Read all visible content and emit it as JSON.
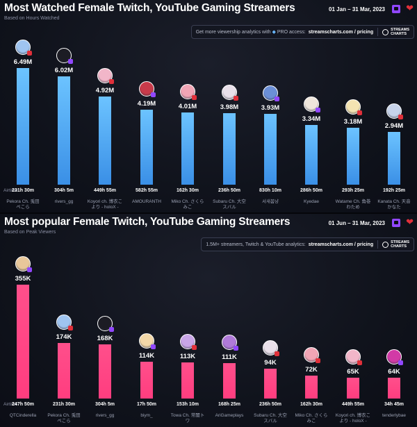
{
  "chart_data": [
    {
      "type": "bar",
      "title": "Most Watched Female Twitch, YouTube Gaming Streamers",
      "subtitle": "Based on Hours Watched",
      "date_range": "01 Jan – 31 Mar, 2023",
      "promo": {
        "text": "Get more viewership analytics with",
        "badge": "PRO access:",
        "link": "streamscharts.com / pricing"
      },
      "categories": [
        "Pekora Ch. 兎田ぺこら",
        "rivers_gg",
        "Koyori ch. 博衣こより - holoX -",
        "AMOURANTH",
        "Miko Ch. さくらみこ",
        "Subaru Ch. 大空スバル",
        "서새봄냥",
        "Kyedae",
        "Watame Ch. 角巻わため",
        "Kanata Ch. 天音かなた"
      ],
      "value_labels": [
        "6.49M",
        "6.02M",
        "4.92M",
        "4.19M",
        "4.01M",
        "3.98M",
        "3.93M",
        "3.34M",
        "3.18M",
        "2.94M"
      ],
      "values": [
        6.49,
        6.02,
        4.92,
        4.19,
        4.01,
        3.98,
        3.93,
        3.34,
        3.18,
        2.94
      ],
      "airtime_label": "Airtime:",
      "airtime": [
        "231h 30m",
        "304h 5m",
        "449h 55m",
        "582h 55m",
        "162h 30m",
        "236h 50m",
        "830h 10m",
        "286h 50m",
        "293h 25m",
        "192h 25m"
      ],
      "avatar_colors": [
        "#9fc4f0",
        "#1c1c24",
        "#f2b6c9",
        "#c83a4a",
        "#f1a5b5",
        "#e9e0ea",
        "#6b8fd6",
        "#efe6dc",
        "#f4e3b2",
        "#c7d3ea"
      ],
      "badge_colors": [
        "#e0303a",
        "#9147ff",
        "#e0303a",
        "#9147ff",
        "#e0303a",
        "#e0303a",
        "#9147ff",
        "#9147ff",
        "#e0303a",
        "#e0303a"
      ],
      "color": "#4aa3f5"
    },
    {
      "type": "bar",
      "title": "Most popular Female Twitch, YouTube Gaming Streamers",
      "subtitle": "Based on Peak Viewers",
      "date_range": "01 Jun – 31 Mar, 2023",
      "promo": {
        "text": "1.5M+ streamers, Twitch & YouTube analytics:",
        "link": "streamscharts.com / pricing"
      },
      "categories": [
        "QTCinderella",
        "Pekora Ch. 兎田ぺこら",
        "rivers_gg",
        "biym_",
        "Towa Ch. 常闇トワ",
        "AriGameplays",
        "Subaru Ch. 大空スバル",
        "Miko Ch. さくらみこ",
        "Koyori ch. 博衣こより - holoX -",
        "tenderlybae"
      ],
      "value_labels": [
        "355K",
        "174K",
        "168K",
        "114K",
        "113K",
        "111K",
        "94K",
        "72K",
        "65K",
        "64K"
      ],
      "values": [
        355,
        174,
        168,
        114,
        113,
        111,
        94,
        72,
        65,
        64
      ],
      "airtime_label": "Airtime:",
      "airtime": [
        "247h 50m",
        "231h 30m",
        "304h 5m",
        "17h 50m",
        "153h 10m",
        "168h 25m",
        "236h 50m",
        "162h 30m",
        "449h 55m",
        "34h 45m"
      ],
      "avatar_colors": [
        "#e8c79a",
        "#9fc4f0",
        "#1c1c24",
        "#f3d8a8",
        "#c9a6e8",
        "#b07ad9",
        "#e9e0ea",
        "#f1a5b5",
        "#f2b6c9",
        "#d23aa6"
      ],
      "badge_colors": [
        "#9147ff",
        "#e0303a",
        "#9147ff",
        "#9147ff",
        "#e0303a",
        "#9147ff",
        "#e0303a",
        "#e0303a",
        "#e0303a",
        "#9147ff"
      ],
      "color": "#ff4386"
    }
  ]
}
